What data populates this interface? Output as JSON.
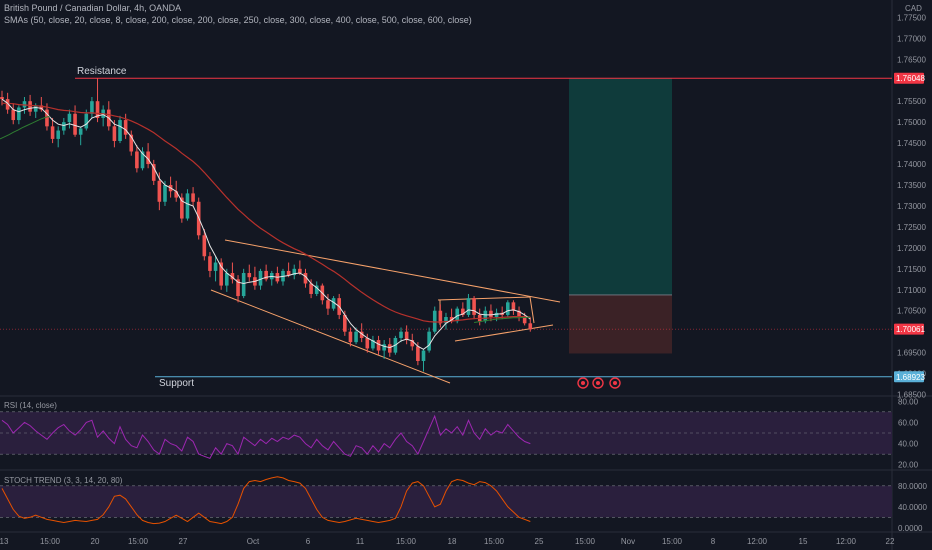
{
  "header": {
    "title": "British Pound / Canadian Dollar, 4h, OANDA",
    "indicator": "SMAs (50, close, 20, close, 8, close, 200, close, 200, close, 250, close, 300, close, 400, close, 500, close, 600, close)",
    "currency": "CAD"
  },
  "colors": {
    "background": "#131722",
    "up": "#26a69a",
    "down": "#ef5350",
    "resistance": "#f23645",
    "support": "#5ab0d8",
    "wedge": "#f7a26b",
    "sma_fast": "#e6e6e6",
    "sma_mid": "#b7312c",
    "sma_green": "#2e7d32",
    "rsi": "#9c27b0",
    "stoch": "#e65100",
    "target_zone": "#0f3b3b",
    "stop_zone": "#3b2226"
  },
  "chart_data": [
    {
      "type": "candlestick",
      "title": "British Pound / Canadian Dollar, 4h, OANDA",
      "ylim": [
        1.68465,
        1.77915
      ],
      "y_ticks": [
        "1.77500",
        "1.77000",
        "1.76500",
        "1.75500",
        "1.75000",
        "1.74500",
        "1.74000",
        "1.73500",
        "1.73000",
        "1.72500",
        "1.72000",
        "1.71500",
        "1.71000",
        "1.70500",
        "1.69500",
        "1.69000",
        "1.68500"
      ],
      "x_ticks": [
        "13",
        "15:00",
        "20",
        "15:00",
        "27",
        "Oct",
        "6",
        "11",
        "15:00",
        "18",
        "15:00",
        "25",
        "15:00",
        "Nov",
        "15:00",
        "8",
        "12:00",
        "15",
        "12:00",
        "22"
      ],
      "price_tags": [
        {
          "label": "1.76048",
          "value": 1.76048,
          "color": "#f23645"
        },
        {
          "label": "1.70061",
          "value": 1.70061,
          "color": "#f23645"
        },
        {
          "label": "1.68923",
          "value": 1.68923,
          "color": "#5ab0d8"
        }
      ],
      "annotations": {
        "resistance": {
          "label": "Resistance",
          "value": 1.76048
        },
        "support": {
          "label": "Support",
          "value": 1.68923
        }
      },
      "position_tool": {
        "target": 1.76048,
        "entry": 1.70877,
        "stop": 1.6948
      },
      "candles": [
        {
          "o": 1.756,
          "h": 1.7575,
          "l": 1.754,
          "c": 1.7555
        },
        {
          "o": 1.7555,
          "h": 1.757,
          "l": 1.752,
          "c": 1.753
        },
        {
          "o": 1.753,
          "h": 1.7545,
          "l": 1.7495,
          "c": 1.7505
        },
        {
          "o": 1.7505,
          "h": 1.754,
          "l": 1.7495,
          "c": 1.7535
        },
        {
          "o": 1.7535,
          "h": 1.756,
          "l": 1.752,
          "c": 1.755
        },
        {
          "o": 1.755,
          "h": 1.7565,
          "l": 1.7515,
          "c": 1.7525
        },
        {
          "o": 1.7525,
          "h": 1.7545,
          "l": 1.751,
          "c": 1.754
        },
        {
          "o": 1.754,
          "h": 1.756,
          "l": 1.7525,
          "c": 1.753
        },
        {
          "o": 1.753,
          "h": 1.7545,
          "l": 1.748,
          "c": 1.749
        },
        {
          "o": 1.749,
          "h": 1.751,
          "l": 1.745,
          "c": 1.746
        },
        {
          "o": 1.746,
          "h": 1.749,
          "l": 1.744,
          "c": 1.748
        },
        {
          "o": 1.748,
          "h": 1.751,
          "l": 1.747,
          "c": 1.75
        },
        {
          "o": 1.75,
          "h": 1.753,
          "l": 1.7485,
          "c": 1.752
        },
        {
          "o": 1.752,
          "h": 1.754,
          "l": 1.7465,
          "c": 1.747
        },
        {
          "o": 1.747,
          "h": 1.749,
          "l": 1.7445,
          "c": 1.7485
        },
        {
          "o": 1.7485,
          "h": 1.753,
          "l": 1.748,
          "c": 1.752
        },
        {
          "o": 1.752,
          "h": 1.756,
          "l": 1.751,
          "c": 1.755
        },
        {
          "o": 1.755,
          "h": 1.7605,
          "l": 1.75,
          "c": 1.751
        },
        {
          "o": 1.751,
          "h": 1.754,
          "l": 1.749,
          "c": 1.753
        },
        {
          "o": 1.753,
          "h": 1.755,
          "l": 1.748,
          "c": 1.749
        },
        {
          "o": 1.749,
          "h": 1.7505,
          "l": 1.744,
          "c": 1.7455
        },
        {
          "o": 1.7455,
          "h": 1.7515,
          "l": 1.745,
          "c": 1.7505
        },
        {
          "o": 1.7505,
          "h": 1.752,
          "l": 1.746,
          "c": 1.747
        },
        {
          "o": 1.747,
          "h": 1.748,
          "l": 1.742,
          "c": 1.743
        },
        {
          "o": 1.743,
          "h": 1.7445,
          "l": 1.738,
          "c": 1.739
        },
        {
          "o": 1.739,
          "h": 1.744,
          "l": 1.7385,
          "c": 1.743
        },
        {
          "o": 1.743,
          "h": 1.745,
          "l": 1.739,
          "c": 1.74
        },
        {
          "o": 1.74,
          "h": 1.741,
          "l": 1.735,
          "c": 1.736
        },
        {
          "o": 1.736,
          "h": 1.738,
          "l": 1.729,
          "c": 1.731
        },
        {
          "o": 1.731,
          "h": 1.736,
          "l": 1.73,
          "c": 1.735
        },
        {
          "o": 1.735,
          "h": 1.737,
          "l": 1.732,
          "c": 1.7335
        },
        {
          "o": 1.7335,
          "h": 1.736,
          "l": 1.731,
          "c": 1.732
        },
        {
          "o": 1.732,
          "h": 1.733,
          "l": 1.726,
          "c": 1.727
        },
        {
          "o": 1.727,
          "h": 1.734,
          "l": 1.7265,
          "c": 1.733
        },
        {
          "o": 1.733,
          "h": 1.7345,
          "l": 1.73,
          "c": 1.731
        },
        {
          "o": 1.731,
          "h": 1.732,
          "l": 1.722,
          "c": 1.723
        },
        {
          "o": 1.723,
          "h": 1.7245,
          "l": 1.717,
          "c": 1.718
        },
        {
          "o": 1.718,
          "h": 1.719,
          "l": 1.713,
          "c": 1.7145
        },
        {
          "o": 1.7145,
          "h": 1.718,
          "l": 1.712,
          "c": 1.7165
        },
        {
          "o": 1.7165,
          "h": 1.7175,
          "l": 1.71,
          "c": 1.711
        },
        {
          "o": 1.711,
          "h": 1.715,
          "l": 1.7095,
          "c": 1.714
        },
        {
          "o": 1.714,
          "h": 1.7165,
          "l": 1.7115,
          "c": 1.7125
        },
        {
          "o": 1.7125,
          "h": 1.7135,
          "l": 1.707,
          "c": 1.7085
        },
        {
          "o": 1.7085,
          "h": 1.715,
          "l": 1.708,
          "c": 1.714
        },
        {
          "o": 1.714,
          "h": 1.716,
          "l": 1.712,
          "c": 1.713
        },
        {
          "o": 1.713,
          "h": 1.7155,
          "l": 1.71,
          "c": 1.711
        },
        {
          "o": 1.711,
          "h": 1.715,
          "l": 1.71,
          "c": 1.7145
        },
        {
          "o": 1.7145,
          "h": 1.716,
          "l": 1.712,
          "c": 1.7125
        },
        {
          "o": 1.7125,
          "h": 1.7145,
          "l": 1.711,
          "c": 1.714
        },
        {
          "o": 1.714,
          "h": 1.7155,
          "l": 1.7115,
          "c": 1.712
        },
        {
          "o": 1.712,
          "h": 1.715,
          "l": 1.711,
          "c": 1.7145
        },
        {
          "o": 1.7145,
          "h": 1.7165,
          "l": 1.713,
          "c": 1.7135
        },
        {
          "o": 1.7135,
          "h": 1.716,
          "l": 1.7125,
          "c": 1.715
        },
        {
          "o": 1.715,
          "h": 1.717,
          "l": 1.7135,
          "c": 1.714
        },
        {
          "o": 1.714,
          "h": 1.715,
          "l": 1.7105,
          "c": 1.7115
        },
        {
          "o": 1.7115,
          "h": 1.7125,
          "l": 1.708,
          "c": 1.709
        },
        {
          "o": 1.709,
          "h": 1.712,
          "l": 1.7085,
          "c": 1.711
        },
        {
          "o": 1.711,
          "h": 1.7115,
          "l": 1.7065,
          "c": 1.7075
        },
        {
          "o": 1.7075,
          "h": 1.709,
          "l": 1.704,
          "c": 1.7055
        },
        {
          "o": 1.7055,
          "h": 1.7085,
          "l": 1.705,
          "c": 1.708
        },
        {
          "o": 1.708,
          "h": 1.709,
          "l": 1.703,
          "c": 1.704
        },
        {
          "o": 1.704,
          "h": 1.705,
          "l": 1.699,
          "c": 1.7
        },
        {
          "o": 1.7,
          "h": 1.701,
          "l": 1.6965,
          "c": 1.6975
        },
        {
          "o": 1.6975,
          "h": 1.701,
          "l": 1.697,
          "c": 1.7
        },
        {
          "o": 1.7,
          "h": 1.702,
          "l": 1.6975,
          "c": 1.6985
        },
        {
          "o": 1.6985,
          "h": 1.6995,
          "l": 1.695,
          "c": 1.696
        },
        {
          "o": 1.696,
          "h": 1.699,
          "l": 1.6955,
          "c": 1.698
        },
        {
          "o": 1.698,
          "h": 1.699,
          "l": 1.6945,
          "c": 1.6955
        },
        {
          "o": 1.6955,
          "h": 1.698,
          "l": 1.6935,
          "c": 1.697
        },
        {
          "o": 1.697,
          "h": 1.6985,
          "l": 1.694,
          "c": 1.695
        },
        {
          "o": 1.695,
          "h": 1.699,
          "l": 1.6945,
          "c": 1.6985
        },
        {
          "o": 1.6985,
          "h": 1.701,
          "l": 1.6975,
          "c": 1.7
        },
        {
          "o": 1.7,
          "h": 1.7015,
          "l": 1.697,
          "c": 1.698
        },
        {
          "o": 1.698,
          "h": 1.6995,
          "l": 1.6955,
          "c": 1.6965
        },
        {
          "o": 1.6965,
          "h": 1.6975,
          "l": 1.692,
          "c": 1.693
        },
        {
          "o": 1.693,
          "h": 1.696,
          "l": 1.6905,
          "c": 1.6955
        },
        {
          "o": 1.6955,
          "h": 1.701,
          "l": 1.695,
          "c": 1.7
        },
        {
          "o": 1.7,
          "h": 1.706,
          "l": 1.6995,
          "c": 1.705
        },
        {
          "o": 1.705,
          "h": 1.7065,
          "l": 1.701,
          "c": 1.702
        },
        {
          "o": 1.702,
          "h": 1.7045,
          "l": 1.7005,
          "c": 1.7035
        },
        {
          "o": 1.7035,
          "h": 1.7055,
          "l": 1.702,
          "c": 1.7025
        },
        {
          "o": 1.7025,
          "h": 1.706,
          "l": 1.702,
          "c": 1.7055
        },
        {
          "o": 1.7055,
          "h": 1.707,
          "l": 1.7035,
          "c": 1.704
        },
        {
          "o": 1.704,
          "h": 1.709,
          "l": 1.7035,
          "c": 1.708
        },
        {
          "o": 1.708,
          "h": 1.7085,
          "l": 1.703,
          "c": 1.704
        },
        {
          "o": 1.704,
          "h": 1.7055,
          "l": 1.7015,
          "c": 1.7025
        },
        {
          "o": 1.7025,
          "h": 1.706,
          "l": 1.702,
          "c": 1.705
        },
        {
          "o": 1.705,
          "h": 1.7065,
          "l": 1.7025,
          "c": 1.7035
        },
        {
          "o": 1.7035,
          "h": 1.7055,
          "l": 1.7025,
          "c": 1.7045
        },
        {
          "o": 1.7045,
          "h": 1.706,
          "l": 1.703,
          "c": 1.704
        },
        {
          "o": 1.704,
          "h": 1.7075,
          "l": 1.7035,
          "c": 1.707
        },
        {
          "o": 1.707,
          "h": 1.7075,
          "l": 1.704,
          "c": 1.705
        },
        {
          "o": 1.705,
          "h": 1.706,
          "l": 1.7025,
          "c": 1.7035
        },
        {
          "o": 1.7035,
          "h": 1.7045,
          "l": 1.7015,
          "c": 1.702
        },
        {
          "o": 1.702,
          "h": 1.7035,
          "l": 1.7,
          "c": 1.7006
        }
      ],
      "sma_fast": [
        1.7555,
        1.7545,
        1.753,
        1.7525,
        1.753,
        1.7533,
        1.7535,
        1.7533,
        1.752,
        1.7505,
        1.7495,
        1.7492,
        1.7496,
        1.7492,
        1.7488,
        1.7495,
        1.751,
        1.7515,
        1.7518,
        1.751,
        1.7495,
        1.749,
        1.7482,
        1.7465,
        1.7442,
        1.7425,
        1.7412,
        1.7392,
        1.7365,
        1.735,
        1.7343,
        1.7335,
        1.7312,
        1.7305,
        1.73,
        1.7272,
        1.724,
        1.7205,
        1.718,
        1.7155,
        1.714,
        1.713,
        1.7118,
        1.7115,
        1.7118,
        1.712,
        1.7125,
        1.713,
        1.7132,
        1.713,
        1.7132,
        1.7134,
        1.7138,
        1.714,
        1.7132,
        1.7115,
        1.7105,
        1.7092,
        1.7078,
        1.707,
        1.706,
        1.704,
        1.702,
        1.7005,
        1.6995,
        1.6985,
        1.6978,
        1.697,
        1.6965,
        1.6962,
        1.6968,
        1.6978,
        1.6982,
        1.6978,
        1.6965,
        1.6958,
        1.6968,
        1.699,
        1.7005,
        1.702,
        1.7028,
        1.7038,
        1.7042,
        1.7052,
        1.705,
        1.7042,
        1.704,
        1.704,
        1.7042,
        1.7043,
        1.705,
        1.7052,
        1.7048,
        1.704,
        1.703
      ],
      "sma_slow": [
        1.7545,
        1.7545,
        1.7544,
        1.7542,
        1.7541,
        1.754,
        1.7539,
        1.7538,
        1.7536,
        1.7533,
        1.753,
        1.7528,
        1.7527,
        1.7525,
        1.7523,
        1.7522,
        1.7522,
        1.7521,
        1.752,
        1.7518,
        1.7515,
        1.7512,
        1.7508,
        1.7503,
        1.7497,
        1.749,
        1.7483,
        1.7475,
        1.7465,
        1.7455,
        1.7446,
        1.7437,
        1.7426,
        1.7416,
        1.7406,
        1.7394,
        1.738,
        1.7365,
        1.735,
        1.7335,
        1.732,
        1.7306,
        1.7292,
        1.728,
        1.7268,
        1.7257,
        1.7247,
        1.7238,
        1.7229,
        1.722,
        1.7212,
        1.7205,
        1.7198,
        1.7192,
        1.7185,
        1.7177,
        1.7169,
        1.7161,
        1.7152,
        1.7144,
        1.7135,
        1.7125,
        1.7114,
        1.7104,
        1.7094,
        1.7085,
        1.7076,
        1.7068,
        1.706,
        1.7053,
        1.7047,
        1.7042,
        1.7038,
        1.7034,
        1.703,
        1.7026,
        1.7024,
        1.7023,
        1.7023,
        1.7024,
        1.7025,
        1.7027,
        1.7028,
        1.703,
        1.7031,
        1.7032,
        1.7032,
        1.7033,
        1.7033,
        1.7034,
        1.7035,
        1.7036,
        1.7036,
        1.7036,
        1.7035
      ],
      "sma_green": [
        1.746,
        1.7465,
        1.747,
        1.7476,
        1.7481,
        1.7487,
        1.7492,
        1.7497,
        1.7502,
        1.7507,
        1.7511,
        1.7514
      ],
      "sma_green_late": [
        1.7022,
        1.7024,
        1.7026,
        1.7028,
        1.703,
        1.7031,
        1.7032,
        1.7033,
        1.7033,
        1.7034,
        1.7034
      ]
    },
    {
      "type": "line",
      "title": "RSI (14, close)",
      "ylim": [
        15,
        85
      ],
      "y_ticks": [
        "80.00",
        "60.00",
        "40.00",
        "20.00"
      ],
      "bands": [
        70,
        50,
        30
      ],
      "series": [
        {
          "values": [
            62,
            58,
            50,
            55,
            60,
            57,
            52,
            48,
            44,
            50,
            55,
            58,
            52,
            48,
            53,
            60,
            62,
            46,
            52,
            45,
            40,
            56,
            44,
            38,
            36,
            48,
            42,
            34,
            30,
            44,
            40,
            38,
            33,
            46,
            42,
            30,
            28,
            26,
            36,
            30,
            40,
            38,
            30,
            46,
            42,
            38,
            44,
            40,
            45,
            42,
            46,
            44,
            48,
            46,
            40,
            36,
            44,
            38,
            34,
            42,
            36,
            30,
            28,
            38,
            36,
            30,
            38,
            32,
            40,
            36,
            44,
            50,
            42,
            38,
            30,
            42,
            54,
            66,
            48,
            54,
            50,
            56,
            48,
            62,
            50,
            44,
            54,
            48,
            52,
            50,
            58,
            52,
            46,
            42,
            40
          ]
        }
      ]
    },
    {
      "type": "line",
      "title": "STOCH TREND (3, 3, 14, 20, 80)",
      "ylim": [
        -8,
        110
      ],
      "y_ticks": [
        "80.0000",
        "40.0000",
        "0.0000"
      ],
      "bands": [
        80,
        20
      ],
      "series": [
        {
          "values": [
            75,
            55,
            35,
            22,
            18,
            20,
            24,
            20,
            16,
            14,
            12,
            10,
            12,
            14,
            13,
            12,
            14,
            16,
            25,
            40,
            60,
            62,
            55,
            40,
            25,
            14,
            10,
            8,
            9,
            12,
            18,
            24,
            18,
            12,
            20,
            28,
            20,
            12,
            10,
            8,
            12,
            20,
            45,
            75,
            88,
            90,
            88,
            92,
            95,
            97,
            95,
            90,
            88,
            85,
            75,
            55,
            35,
            20,
            14,
            12,
            10,
            12,
            15,
            18,
            16,
            14,
            12,
            10,
            12,
            14,
            18,
            40,
            70,
            85,
            88,
            80,
            60,
            40,
            45,
            70,
            88,
            92,
            90,
            85,
            82,
            88,
            86,
            80,
            70,
            55,
            40,
            30,
            20,
            16,
            12
          ]
        }
      ]
    }
  ],
  "markers": {
    "count": 3,
    "icon": "event-icon"
  }
}
